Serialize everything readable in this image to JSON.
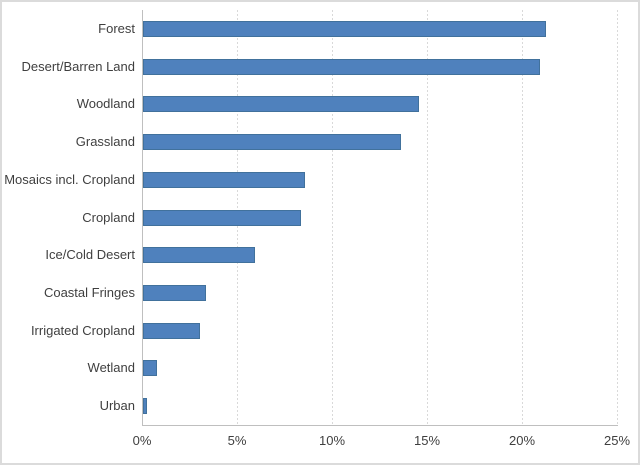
{
  "chart_data": {
    "type": "bar",
    "orientation": "horizontal",
    "title": "",
    "xlabel": "",
    "ylabel": "",
    "categories": [
      "Forest",
      "Desert/Barren Land",
      "Woodland",
      "Grassland",
      "Mosaics incl. Cropland",
      "Cropland",
      "Ice/Cold Desert",
      "Coastal Fringes",
      "Irrigated Cropland",
      "Wetland",
      "Urban"
    ],
    "values": [
      21.2,
      20.9,
      14.5,
      13.6,
      8.5,
      8.3,
      5.9,
      3.3,
      3.0,
      0.75,
      0.2
    ],
    "value_unit": "%",
    "xlim": [
      0,
      25
    ],
    "x_tick_values": [
      0,
      5,
      10,
      15,
      20,
      25
    ],
    "x_tick_labels": [
      "0%",
      "5%",
      "10%",
      "15%",
      "20%",
      "25%"
    ],
    "grid": "vertical-dashed",
    "legend": "none",
    "colors": {
      "bar_fill": "#4f81bd",
      "bar_border": "#41719c",
      "gridline": "#d9d9d9",
      "axis_line": "#bfbfbf",
      "label_text": "#3f3f3f",
      "background": "#ffffff",
      "frame_border": "#dbdbdb"
    }
  }
}
